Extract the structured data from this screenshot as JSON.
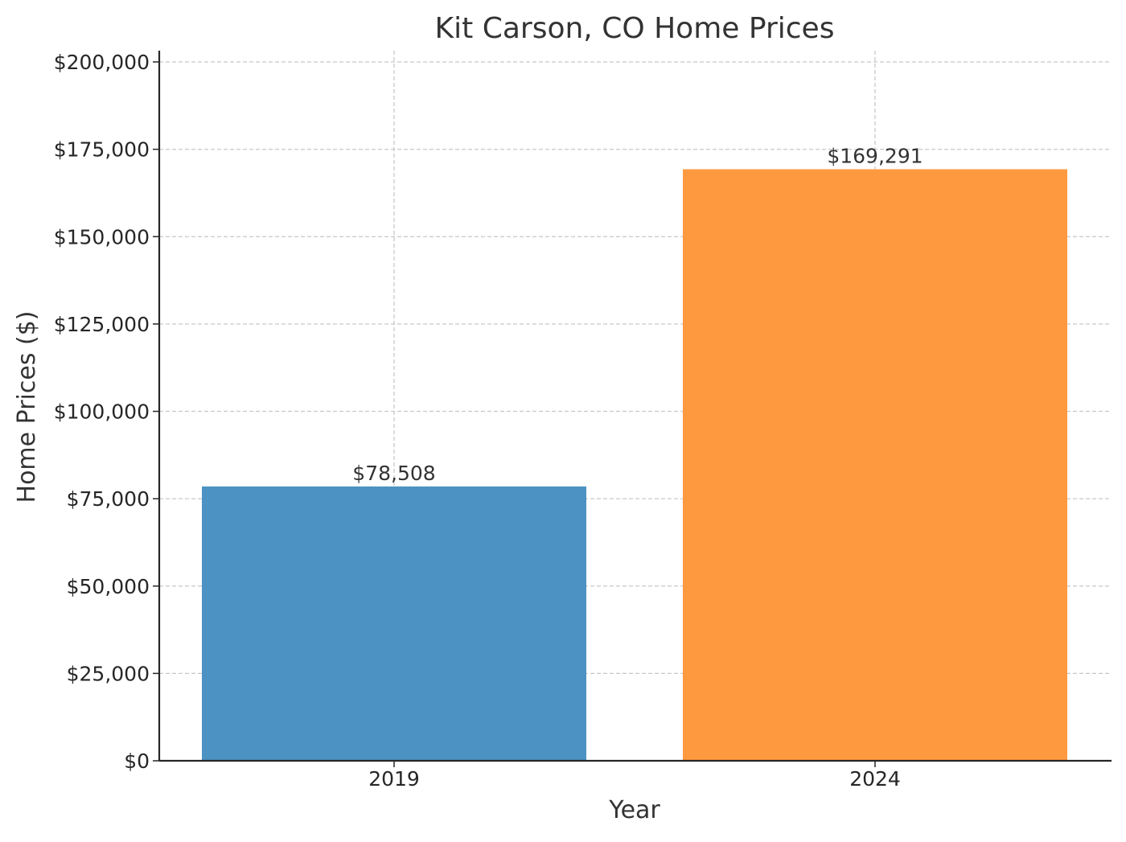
{
  "chart_data": {
    "type": "bar",
    "title": "Kit Carson, CO Home Prices",
    "xlabel": "Year",
    "ylabel": "Home Prices ($)",
    "categories": [
      "2019",
      "2024"
    ],
    "values": [
      78508,
      169291
    ],
    "value_labels": [
      "$78,508",
      "$169,291"
    ],
    "bar_colors": [
      "#4c92c3",
      "#ff993f"
    ],
    "ylim": [
      0,
      200000
    ],
    "y_ticks": [
      0,
      25000,
      50000,
      75000,
      100000,
      125000,
      150000,
      175000,
      200000
    ],
    "y_tick_labels": [
      "$0",
      "$25,000",
      "$50,000",
      "$75,000",
      "$100,000",
      "$125,000",
      "$150,000",
      "$175,000",
      "$200,000"
    ],
    "grid": true,
    "grid_style": "dashed"
  }
}
